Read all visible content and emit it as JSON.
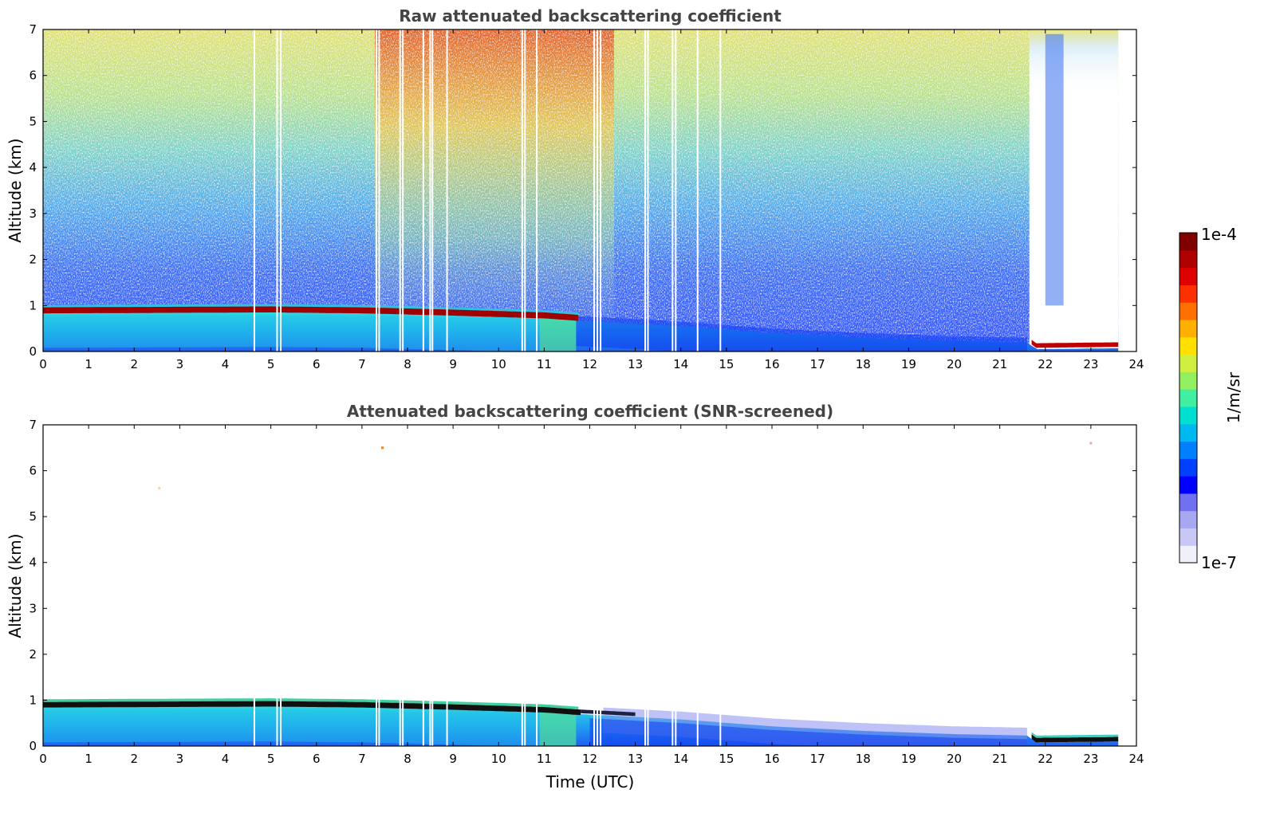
{
  "chart_data": [
    {
      "type": "heatmap",
      "title": "Raw attenuated backscattering coefficient",
      "xlabel": "",
      "ylabel": "Altitude (km)",
      "xlim": [
        0,
        24
      ],
      "ylim": [
        0,
        7
      ],
      "x_ticks": [
        "0",
        "1",
        "2",
        "3",
        "4",
        "5",
        "6",
        "7",
        "8",
        "9",
        "10",
        "11",
        "12",
        "13",
        "14",
        "15",
        "16",
        "17",
        "18",
        "19",
        "20",
        "21",
        "22",
        "23",
        "24"
      ],
      "y_ticks": [
        "0",
        "1",
        "2",
        "3",
        "4",
        "5",
        "6",
        "7"
      ],
      "data_end_hour": 23.6,
      "layer_top_km": [
        {
          "time": 0,
          "altitude": 0.98
        },
        {
          "time": 5,
          "altitude": 1.0
        },
        {
          "time": 7,
          "altitude": 0.98
        },
        {
          "time": 9,
          "altitude": 0.93
        },
        {
          "time": 11,
          "altitude": 0.87
        },
        {
          "time": 11.7,
          "altitude": 0.82
        },
        {
          "time": 12.5,
          "altitude": 0.78
        },
        {
          "time": 14,
          "altitude": 0.7
        },
        {
          "time": 16,
          "altitude": 0.55
        },
        {
          "time": 18,
          "altitude": 0.45
        },
        {
          "time": 20,
          "altitude": 0.38
        },
        {
          "time": 21.6,
          "altitude": 0.35
        },
        {
          "time": 21.8,
          "altitude": 0.2
        },
        {
          "time": 23.6,
          "altitude": 0.22
        }
      ],
      "data_gaps_hours": [
        4.62,
        5.12,
        5.2,
        7.3,
        7.36,
        7.82,
        7.88,
        8.33,
        8.48,
        8.53,
        8.85,
        10.5,
        10.56,
        10.82,
        12.08,
        12.15,
        12.22,
        13.2,
        13.26,
        13.8,
        13.87,
        14.35,
        14.85
      ]
    },
    {
      "type": "heatmap",
      "title": "Attenuated backscattering coefficient (SNR-screened)",
      "xlabel": "Time (UTC)",
      "ylabel": "Altitude (km)",
      "xlim": [
        0,
        24
      ],
      "ylim": [
        0,
        7
      ],
      "x_ticks": [
        "0",
        "1",
        "2",
        "3",
        "4",
        "5",
        "6",
        "7",
        "8",
        "9",
        "10",
        "11",
        "12",
        "13",
        "14",
        "15",
        "16",
        "17",
        "18",
        "19",
        "20",
        "21",
        "22",
        "23",
        "24"
      ],
      "y_ticks": [
        "0",
        "1",
        "2",
        "3",
        "4",
        "5",
        "6",
        "7"
      ],
      "data_end_hour": 23.6,
      "isolated_points": [
        {
          "time": 7.45,
          "altitude": 6.5,
          "color": "#f08020"
        },
        {
          "time": 2.55,
          "altitude": 5.62,
          "color": "#ffd0a0"
        },
        {
          "time": 23.0,
          "altitude": 6.6,
          "color": "#f0a0c0"
        }
      ]
    }
  ],
  "colorbar": {
    "max_label": "1e-4",
    "min_label": "1e-7",
    "unit_label": "1/m/sr",
    "colors": [
      "#f0f0fa",
      "#c8c8f4",
      "#a8a8f0",
      "#7070f0",
      "#0000ff",
      "#0040ff",
      "#0080ff",
      "#00b8f0",
      "#00e0d0",
      "#40f0a0",
      "#90f060",
      "#d0f040",
      "#ffe000",
      "#ffb000",
      "#ff7000",
      "#ff3000",
      "#e00000",
      "#b00000",
      "#800000"
    ]
  },
  "colors": {
    "jet_low": "#0000ff",
    "layer_top_raw": "#a00000",
    "layer_top_screened": "#101010",
    "title_text": "#444444"
  }
}
